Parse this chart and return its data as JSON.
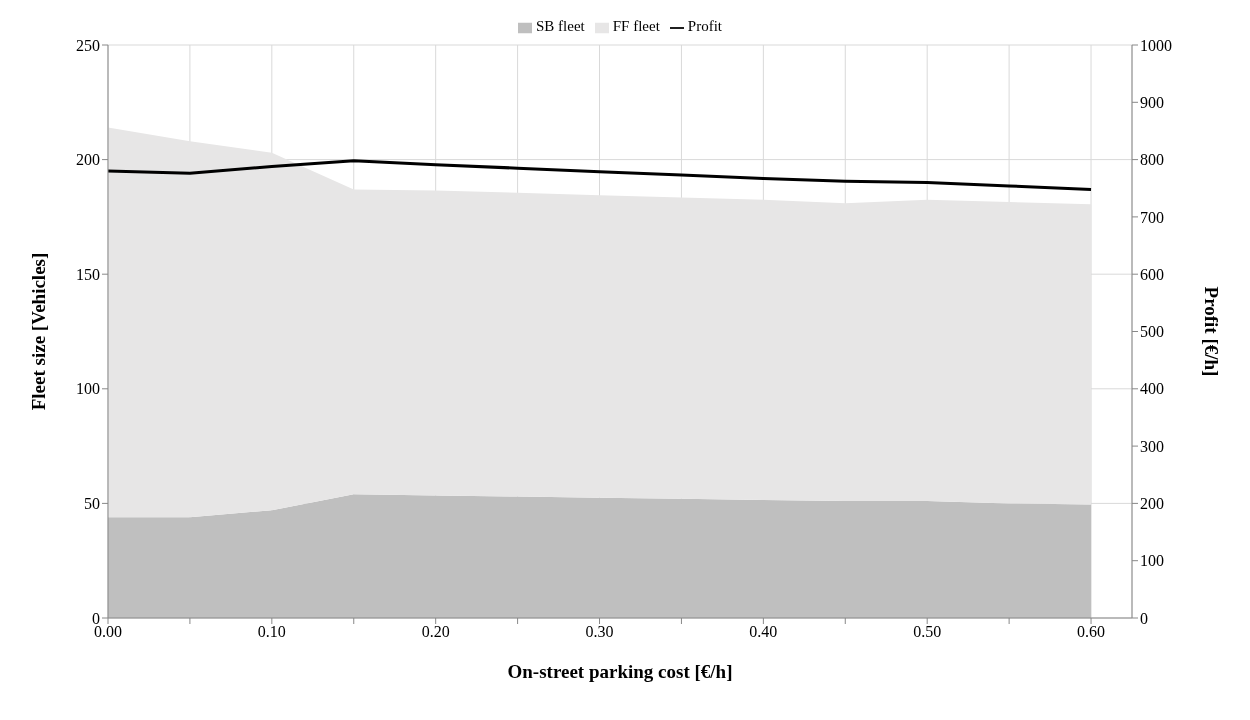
{
  "chart_data": {
    "type": "area",
    "xlabel": "On-street parking cost [€/h]",
    "ylabel": "Fleet size [Vehicles]",
    "y2label": "Profit [€/h]",
    "x": [
      0,
      0.05,
      0.1,
      0.15,
      0.2,
      0.25,
      0.3,
      0.35,
      0.4,
      0.45,
      0.5,
      0.55,
      0.6
    ],
    "series": [
      {
        "name": "SB fleet",
        "color": "#bfbfbf",
        "values": [
          44,
          44,
          47,
          54,
          53.5,
          53,
          52.5,
          52,
          51.5,
          51,
          51,
          50,
          49.5
        ]
      },
      {
        "name": "FF fleet",
        "color": "#e7e6e6",
        "values": [
          170,
          164,
          156,
          133,
          133,
          132.5,
          132,
          131.5,
          131,
          130,
          131.5,
          131.5,
          131
        ]
      },
      {
        "name": "Profit",
        "type": "line",
        "axis": "y2",
        "color": "#000000",
        "values": [
          780,
          776,
          788,
          798,
          791,
          785,
          779,
          773,
          767,
          762,
          760,
          754,
          748
        ]
      }
    ],
    "stacked": true,
    "xlim": [
      0,
      0.625
    ],
    "xticks": [
      {
        "value": 0,
        "label": "0.00"
      },
      {
        "value": 0.05,
        "label": null
      },
      {
        "value": 0.1,
        "label": "0.10"
      },
      {
        "value": 0.15,
        "label": null
      },
      {
        "value": 0.2,
        "label": "0.20"
      },
      {
        "value": 0.25,
        "label": null
      },
      {
        "value": 0.3,
        "label": "0.30"
      },
      {
        "value": 0.35,
        "label": null
      },
      {
        "value": 0.4,
        "label": "0.40"
      },
      {
        "value": 0.45,
        "label": null
      },
      {
        "value": 0.5,
        "label": "0.50"
      },
      {
        "value": 0.55,
        "label": null
      },
      {
        "value": 0.6,
        "label": "0.60"
      }
    ],
    "ylim": [
      0,
      250
    ],
    "yticks": [
      0,
      50,
      100,
      150,
      200,
      250
    ],
    "y2lim": [
      0,
      1000
    ],
    "y2ticks": [
      0,
      100,
      200,
      300,
      400,
      500,
      600,
      700,
      800,
      900,
      1000
    ],
    "grid": true,
    "legend": "top"
  }
}
